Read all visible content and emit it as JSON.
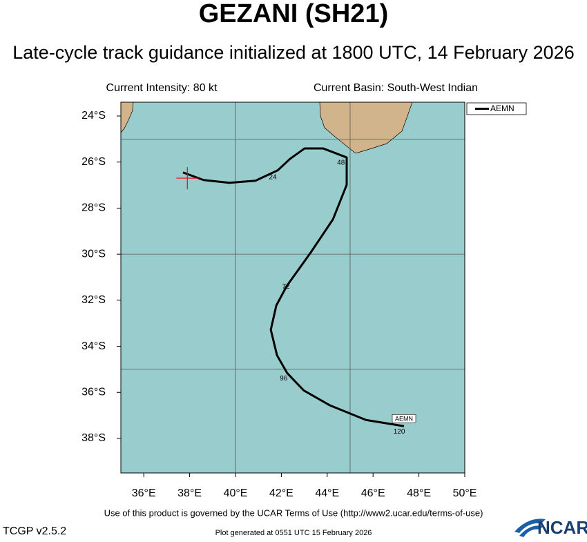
{
  "chart_data": {
    "type": "track_map",
    "title": "GEZANI (SH21)",
    "subtitle": "Late-cycle track guidance initialized at 1800 UTC, 14 February 2026",
    "intensity_label": "Current Intensity: 80 kt",
    "basin_label": "Current Basin: South-West Indian",
    "xlim": [
      35,
      50
    ],
    "ylim": [
      -39.5,
      -23.4
    ],
    "xticks": [
      {
        "value": 36,
        "label": "36°E"
      },
      {
        "value": 38,
        "label": "38°E"
      },
      {
        "value": 40,
        "label": "40°E"
      },
      {
        "value": 42,
        "label": "42°E"
      },
      {
        "value": 44,
        "label": "44°E"
      },
      {
        "value": 46,
        "label": "46°E"
      },
      {
        "value": 48,
        "label": "48°E"
      },
      {
        "value": 50,
        "label": "50°E"
      }
    ],
    "yticks": [
      {
        "value": -24,
        "label": "24°S"
      },
      {
        "value": -26,
        "label": "26°S"
      },
      {
        "value": -28,
        "label": "28°S"
      },
      {
        "value": -30,
        "label": "30°S"
      },
      {
        "value": -32,
        "label": "32°S"
      },
      {
        "value": -34,
        "label": "34°S"
      },
      {
        "value": -36,
        "label": "36°S"
      },
      {
        "value": -38,
        "label": "38°S"
      }
    ],
    "grid_lons": [
      40,
      45
    ],
    "grid_lats": [
      -25,
      -30,
      -35
    ],
    "ocean_color": "#99cccc",
    "land_color": "#d2b48c",
    "current_position": {
      "lon": 37.9,
      "lat": -26.7,
      "color": "#ff0000"
    },
    "series": [
      {
        "name": "AEMN",
        "color": "#000000",
        "lon": [
          37.71,
          38.61,
          39.73,
          40.87,
          41.84,
          42.38,
          43.01,
          43.83,
          44.85,
          44.85,
          44.25,
          43.28,
          42.23,
          41.78,
          41.54,
          41.81,
          42.26,
          42.98,
          44.13,
          45.69,
          47.35
        ],
        "lat": [
          -26.45,
          -26.78,
          -26.9,
          -26.81,
          -26.36,
          -25.86,
          -25.41,
          -25.41,
          -25.8,
          -26.99,
          -28.49,
          -29.93,
          -31.39,
          -32.23,
          -33.28,
          -34.39,
          -35.17,
          -35.92,
          -36.57,
          -37.2,
          -37.47
        ]
      }
    ],
    "hour_labels": [
      {
        "text": "24",
        "lon": 41.63,
        "lat": -26.66
      },
      {
        "text": "48",
        "lon": 44.6,
        "lat": -26.03
      },
      {
        "text": "72",
        "lon": 42.2,
        "lat": -31.42
      },
      {
        "text": "96",
        "lon": 42.1,
        "lat": -35.4
      },
      {
        "text": "120",
        "lon": 47.14,
        "lat": -37.71
      }
    ],
    "end_label": {
      "text": "AEMN",
      "lon": 47.35,
      "lat": -37.14
    },
    "terms": "Use of this product is governed by the UCAR Terms of Use (http://www2.ucar.edu/terms-of-use)",
    "version": "TCGP v2.5.2",
    "generated": "Plot generated at 0551 UTC  15 February 2026",
    "logo": "NCAR"
  }
}
